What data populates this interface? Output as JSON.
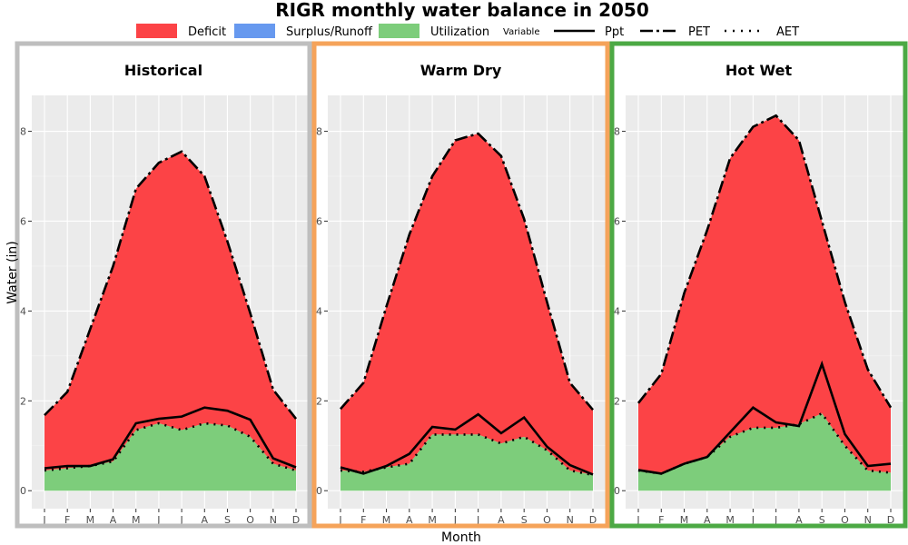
{
  "chart_data": {
    "type": "area",
    "title": "RIGR monthly water balance in 2050",
    "xlabel": "Month",
    "ylabel": "Water (in)",
    "ylim": [
      -0.4,
      8.8
    ],
    "yticks": [
      0,
      2,
      4,
      6,
      8
    ],
    "categories": [
      "J",
      "F",
      "M",
      "A",
      "M",
      "J",
      "J",
      "A",
      "S",
      "O",
      "N",
      "D"
    ],
    "grid": true,
    "legend": {
      "placement": "top",
      "fill_items": [
        {
          "label": "Deficit",
          "color": "#fc4346"
        },
        {
          "label": "Surplus/Runoff",
          "color": "#6799ef"
        },
        {
          "label": "Utilization",
          "color": "#7dcd7b"
        }
      ],
      "line_title": "Variable",
      "line_items": [
        {
          "label": "Ppt",
          "dash": "solid"
        },
        {
          "label": "PET",
          "dash": "longdash"
        },
        {
          "label": "AET",
          "dash": "dotted"
        }
      ]
    },
    "panels": [
      {
        "name": "Historical",
        "border_color": "#bebebe",
        "series": {
          "Ppt": [
            0.5,
            0.55,
            0.55,
            0.7,
            1.5,
            1.6,
            1.65,
            1.85,
            1.78,
            1.58,
            0.72,
            0.52
          ],
          "PET": [
            1.68,
            2.2,
            3.6,
            5.0,
            6.72,
            7.3,
            7.55,
            7.0,
            5.55,
            3.95,
            2.25,
            1.6
          ],
          "AET": [
            0.45,
            0.5,
            0.55,
            0.65,
            1.35,
            1.5,
            1.35,
            1.5,
            1.45,
            1.2,
            0.6,
            0.45
          ]
        }
      },
      {
        "name": "Warm Dry",
        "border_color": "#f5a35a",
        "series": {
          "Ppt": [
            0.52,
            0.38,
            0.55,
            0.82,
            1.42,
            1.36,
            1.7,
            1.28,
            1.63,
            0.98,
            0.57,
            0.36
          ],
          "PET": [
            1.82,
            2.4,
            4.1,
            5.7,
            7.0,
            7.8,
            7.95,
            7.45,
            6.05,
            4.2,
            2.4,
            1.8
          ],
          "AET": [
            0.45,
            0.42,
            0.52,
            0.6,
            1.25,
            1.25,
            1.25,
            1.05,
            1.2,
            0.9,
            0.45,
            0.35
          ]
        }
      },
      {
        "name": "Hot Wet",
        "border_color": "#4ca944",
        "series": {
          "Ppt": [
            0.46,
            0.38,
            0.6,
            0.75,
            1.3,
            1.85,
            1.52,
            1.44,
            2.82,
            1.26,
            0.55,
            0.6
          ],
          "PET": [
            1.95,
            2.6,
            4.4,
            5.8,
            7.4,
            8.1,
            8.35,
            7.8,
            6.0,
            4.2,
            2.7,
            1.85
          ],
          "AET": [
            0.45,
            0.38,
            0.6,
            0.75,
            1.2,
            1.4,
            1.4,
            1.48,
            1.72,
            1.0,
            0.45,
            0.4
          ]
        }
      }
    ]
  }
}
